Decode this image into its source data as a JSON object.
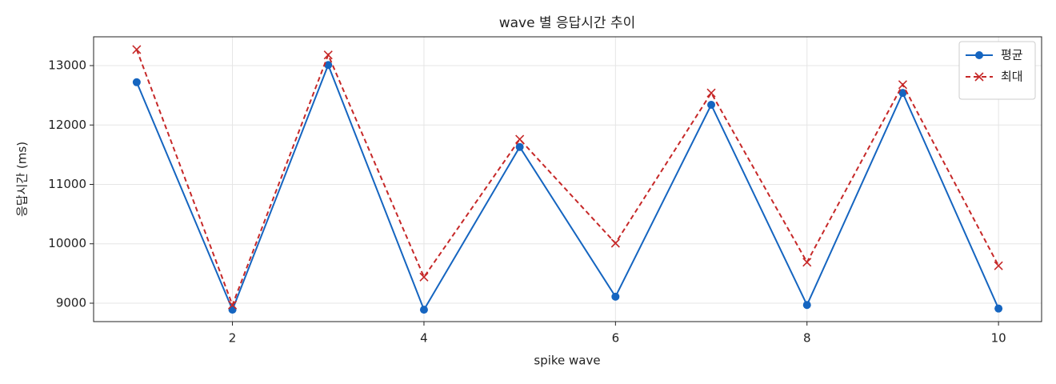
{
  "chart_data": {
    "type": "line",
    "title": "wave 별 응답시간 추이",
    "x_label": "spike wave",
    "y_label": "응답시간 (ms)",
    "x": [
      1,
      2,
      3,
      4,
      5,
      6,
      7,
      8,
      9,
      10
    ],
    "series": [
      {
        "name": "평균",
        "color": "#1565c0",
        "marker": "o",
        "linestyle": "solid",
        "values": [
          12720,
          8890,
          13010,
          8890,
          11630,
          9110,
          12340,
          8970,
          12540,
          8910
        ]
      },
      {
        "name": "최대",
        "color": "#c62828",
        "marker": "x",
        "linestyle": "dashed",
        "values": [
          13270,
          8970,
          13180,
          9440,
          11760,
          10010,
          12540,
          9690,
          12680,
          9630
        ]
      }
    ],
    "xlim": [
      0.55,
      10.45
    ],
    "ylim": [
      8690,
      13485
    ],
    "xticks": [
      2,
      4,
      6,
      8,
      10
    ],
    "yticks": [
      9000,
      10000,
      11000,
      12000,
      13000
    ],
    "grid": true,
    "legend": "upper right"
  }
}
